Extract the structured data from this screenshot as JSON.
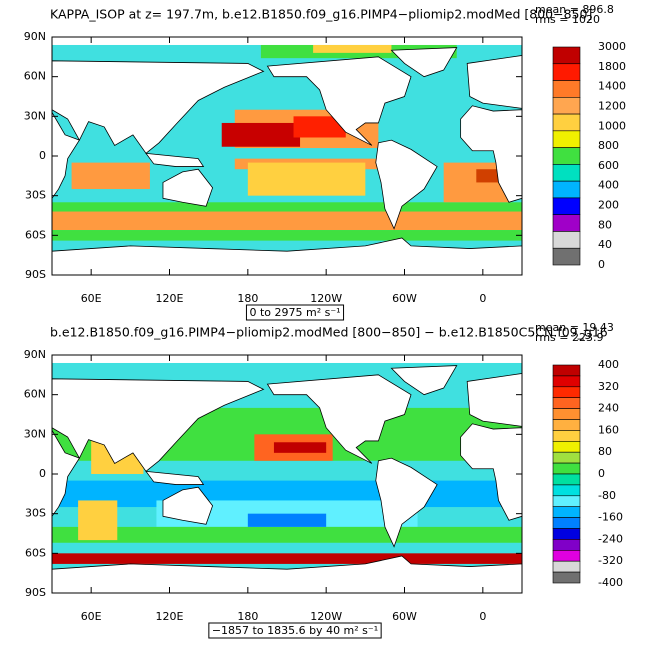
{
  "panels": [
    {
      "title": "KAPPA_ISOP at z= 197.7m, b.e12.B1850.f09_g16.PIMP4−pliomip2.modMed [800−850]",
      "mean": "mean = 896.8",
      "rms": "rms = 1020",
      "range_label": "0 to 2975 m² s⁻¹",
      "lat_labels": [
        "90N",
        "60N",
        "30N",
        "0",
        "30S",
        "60S",
        "90S"
      ],
      "lon_labels": [
        "60E",
        "120E",
        "180",
        "120W",
        "60W",
        "0"
      ],
      "colorbar": {
        "labels": [
          "3000",
          "1800",
          "1400",
          "1200",
          "1000",
          "800",
          "600",
          "400",
          "200",
          "80",
          "40",
          "0"
        ],
        "colors": [
          "#c00000",
          "#ff1a00",
          "#ff7a28",
          "#ffa650",
          "#ffd040",
          "#f0f000",
          "#40e040",
          "#00e0c0",
          "#00b4ff",
          "#0000ff",
          "#a000c8",
          "#d8d8d8",
          "#707070"
        ]
      }
    },
    {
      "title": "b.e12.B1850.f09_g16.PIMP4−pliomip2.modMed [800−850] − b.e12.B1850C5CN.f09_g16",
      "mean": "mean = 19.43",
      "rms": "rms = 223.9",
      "range_label": "−1857 to 1835.6 by 40 m² s⁻¹",
      "lat_labels": [
        "90N",
        "60N",
        "30N",
        "0",
        "30S",
        "60S",
        "90S"
      ],
      "lon_labels": [
        "60E",
        "120E",
        "180",
        "120W",
        "60W",
        "0"
      ],
      "colorbar": {
        "labels": [
          "400",
          "320",
          "240",
          "160",
          "80",
          "0",
          "-80",
          "-160",
          "-240",
          "-320",
          "-400"
        ],
        "colors": [
          "#c00000",
          "#e00000",
          "#ff2a00",
          "#ff6420",
          "#ff9030",
          "#ffb040",
          "#ffd040",
          "#f0f000",
          "#a0e040",
          "#40e040",
          "#00e0a0",
          "#00e0e0",
          "#60f0ff",
          "#00b4ff",
          "#0080ff",
          "#0000e0",
          "#8000c8",
          "#e000e0",
          "#d8d8d8",
          "#707070"
        ]
      }
    }
  ]
}
